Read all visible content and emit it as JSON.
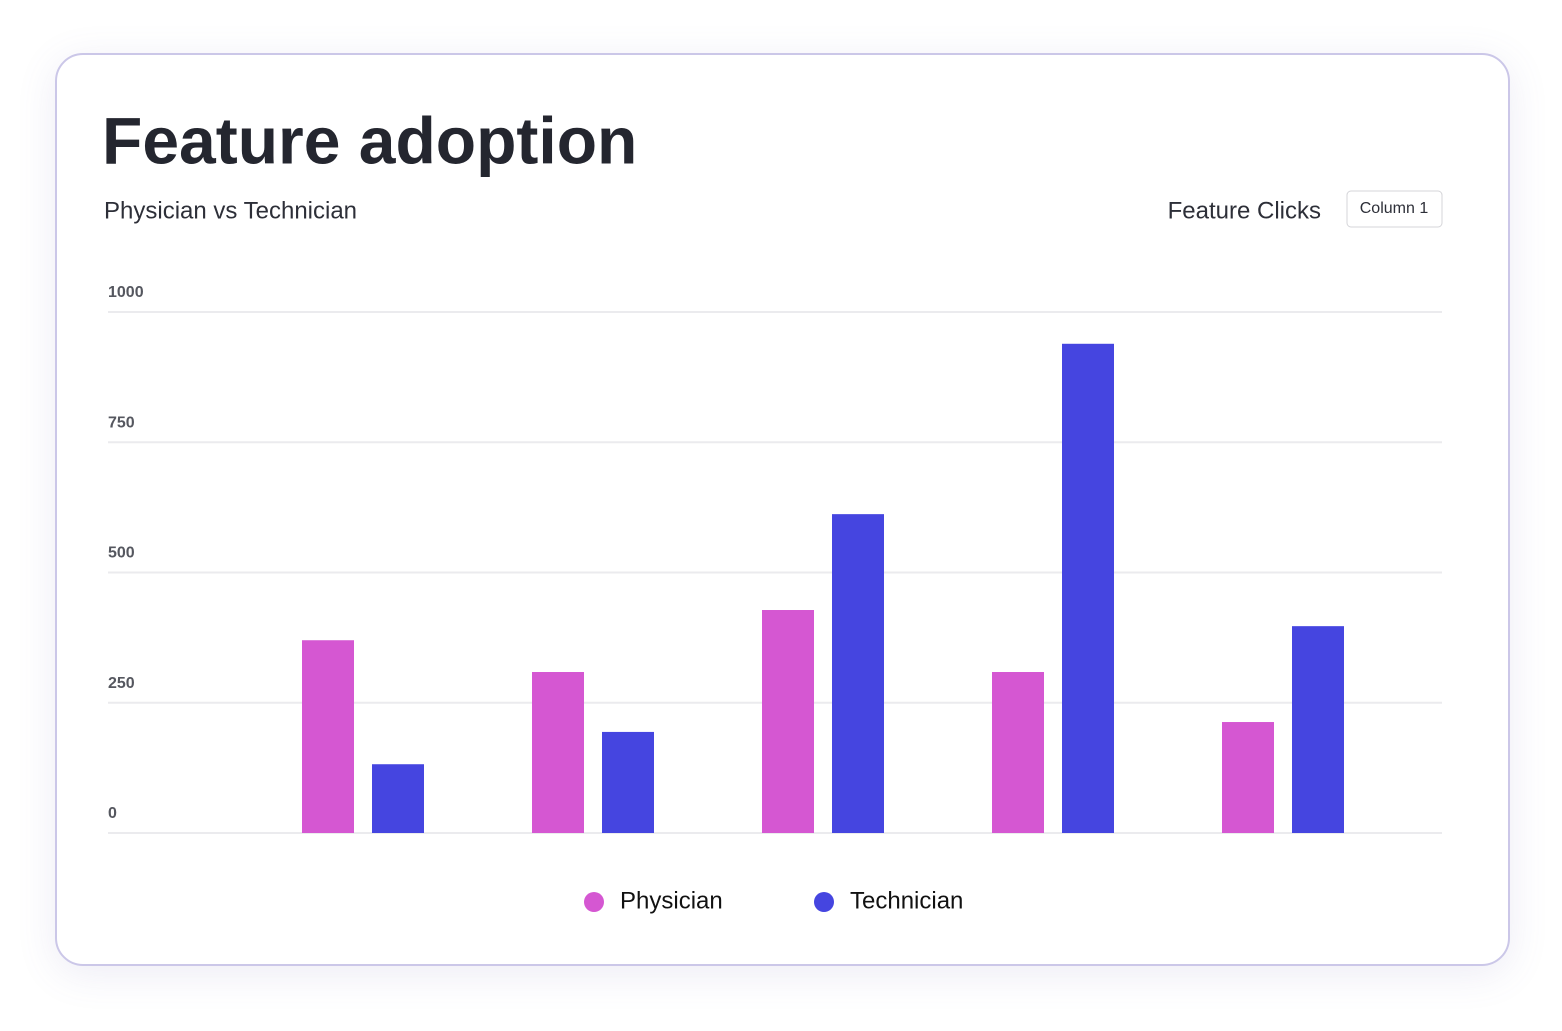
{
  "chart_data": {
    "type": "bar",
    "title": "Feature adoption",
    "subtitle": "Physician vs Technician",
    "control_label": "Feature Clicks",
    "control_button": "Column 1",
    "categories": [
      null,
      null,
      null,
      null,
      null
    ],
    "series": [
      {
        "name": "Physician",
        "color": "#d557d2",
        "values": [
          370,
          309,
          428,
          309,
          213
        ]
      },
      {
        "name": "Technician",
        "color": "#4545e0",
        "values": [
          132,
          194,
          612,
          939,
          397
        ]
      }
    ],
    "ylim": [
      0,
      1000
    ],
    "yticks": [
      0,
      250,
      500,
      750,
      1000
    ],
    "grid": true
  }
}
